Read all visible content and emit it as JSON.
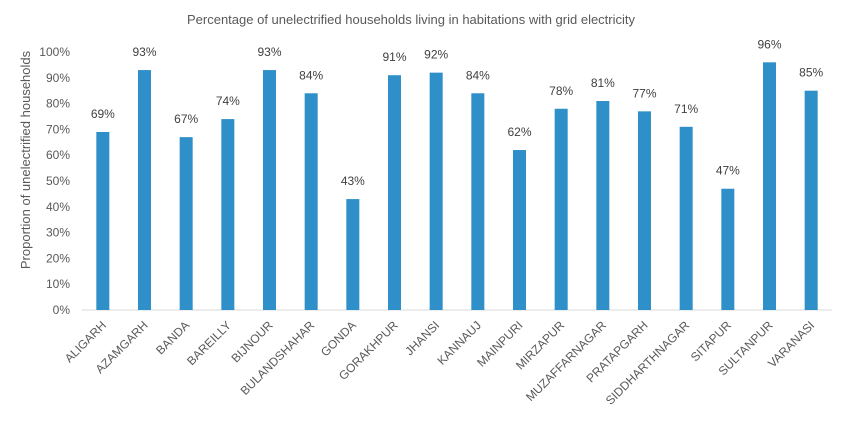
{
  "chart_data": {
    "type": "bar",
    "title": "Percentage of unelectrified households living in habitations with grid electricity",
    "xlabel": "",
    "ylabel": "Proportion of unelectrified households",
    "ylim": [
      0,
      100
    ],
    "y_ticks": [
      "0%",
      "10%",
      "20%",
      "30%",
      "40%",
      "50%",
      "60%",
      "70%",
      "80%",
      "90%",
      "100%"
    ],
    "grid": false,
    "legend": "none",
    "bar_color": "#2E8FC9",
    "categories": [
      "ALIGARH",
      "AZAMGARH",
      "BANDA",
      "BAREILLY",
      "BIJNOUR",
      "BULANDSHAHAR",
      "GONDA",
      "GORAKHPUR",
      "JHANSI",
      "KANNAUJ",
      "MAINPURI",
      "MIRZAPUR",
      "MUZAFFARNAGAR",
      "PRATAPGARH",
      "SIDDHARTHNAGAR",
      "SITAPUR",
      "SULTANPUR",
      "VARANASI"
    ],
    "values": [
      69,
      93,
      67,
      74,
      93,
      84,
      43,
      91,
      92,
      84,
      62,
      78,
      81,
      77,
      71,
      47,
      96,
      85
    ],
    "data_labels": [
      "69%",
      "93%",
      "67%",
      "74%",
      "93%",
      "84%",
      "43%",
      "91%",
      "92%",
      "84%",
      "62%",
      "78%",
      "81%",
      "77%",
      "71%",
      "47%",
      "96%",
      "85%"
    ]
  }
}
